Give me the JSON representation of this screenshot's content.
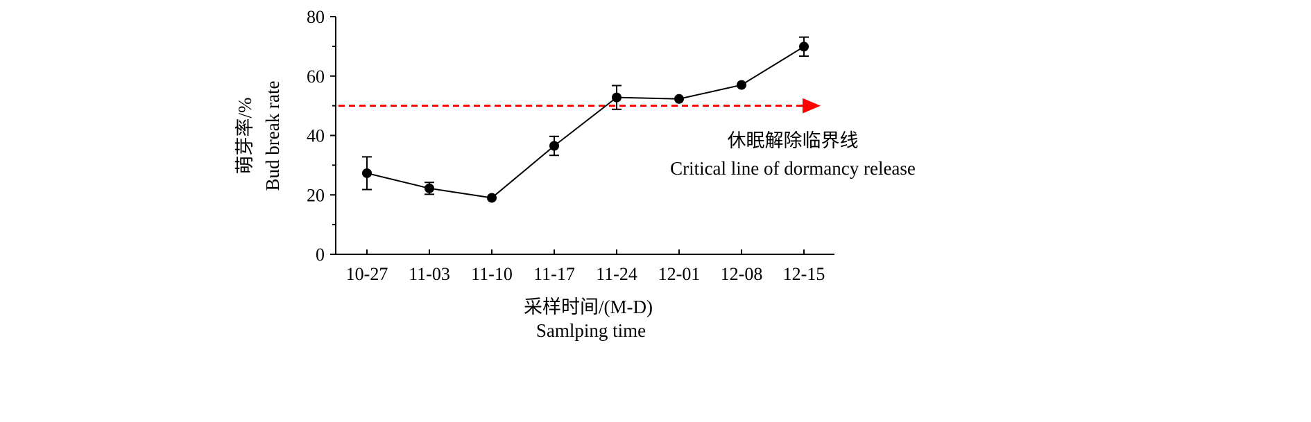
{
  "chart_data": {
    "type": "line",
    "categories": [
      "10-27",
      "11-03",
      "11-10",
      "11-17",
      "11-24",
      "12-01",
      "12-08",
      "12-15"
    ],
    "series": [
      {
        "values": [
          27.3,
          22.2,
          19.0,
          36.5,
          52.8,
          52.3,
          57.0,
          69.9
        ],
        "error": [
          5.5,
          2.0,
          0.0,
          3.2,
          4.0,
          0.0,
          0.0,
          3.2
        ]
      }
    ],
    "ylim": [
      0,
      80
    ],
    "yticks": [
      0,
      20,
      40,
      60,
      80
    ],
    "xlabel_cn": "采样时间/(M-D)",
    "xlabel_en": "Samlping time",
    "ylabel_cn": "萌芽率/%",
    "ylabel_en": "Bud break rate",
    "threshold": {
      "value": 50,
      "color": "#ff0000",
      "label_cn": "休眠解除临界线",
      "label_en": "Critical line of dormancy release"
    },
    "grid": false,
    "legend": "none",
    "line_color": "#000000"
  }
}
